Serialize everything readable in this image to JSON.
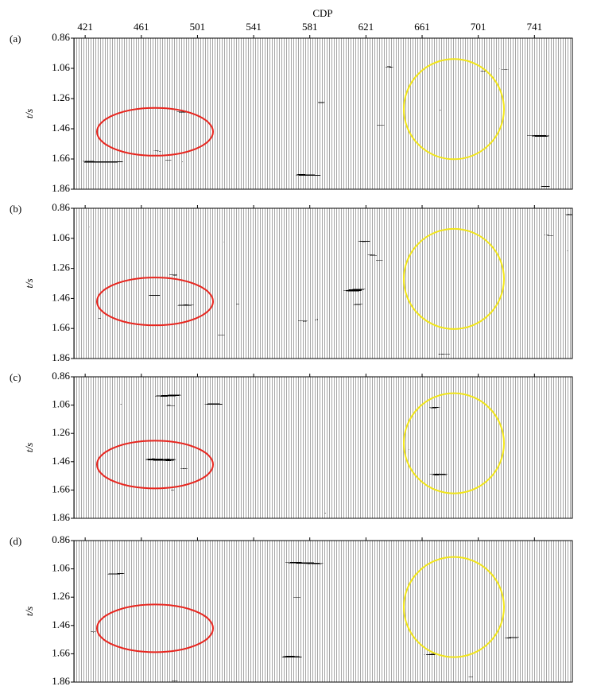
{
  "figure": {
    "x_label": "CDP",
    "xticks": [
      421,
      461,
      501,
      541,
      581,
      621,
      661,
      701,
      741
    ],
    "xlim": [
      413,
      768
    ],
    "y_label": "t/s",
    "panels": [
      {
        "label": "(a)",
        "yticks": [
          0.86,
          1.06,
          1.26,
          1.46,
          1.66,
          1.86
        ],
        "ylim": [
          0.86,
          1.86
        ]
      },
      {
        "label": "(b)",
        "yticks": [
          0.86,
          1.06,
          1.26,
          1.46,
          1.66,
          1.86
        ],
        "ylim": [
          0.86,
          1.86
        ]
      },
      {
        "label": "(c)",
        "yticks": [
          0.86,
          1.06,
          1.26,
          1.46,
          1.66,
          1.86
        ],
        "ylim": [
          0.86,
          1.86
        ]
      },
      {
        "label": "(d)",
        "yticks": [
          0.86,
          1.06,
          1.26,
          1.46,
          1.66,
          1.86
        ],
        "ylim": [
          0.86,
          1.86
        ]
      }
    ]
  }
}
